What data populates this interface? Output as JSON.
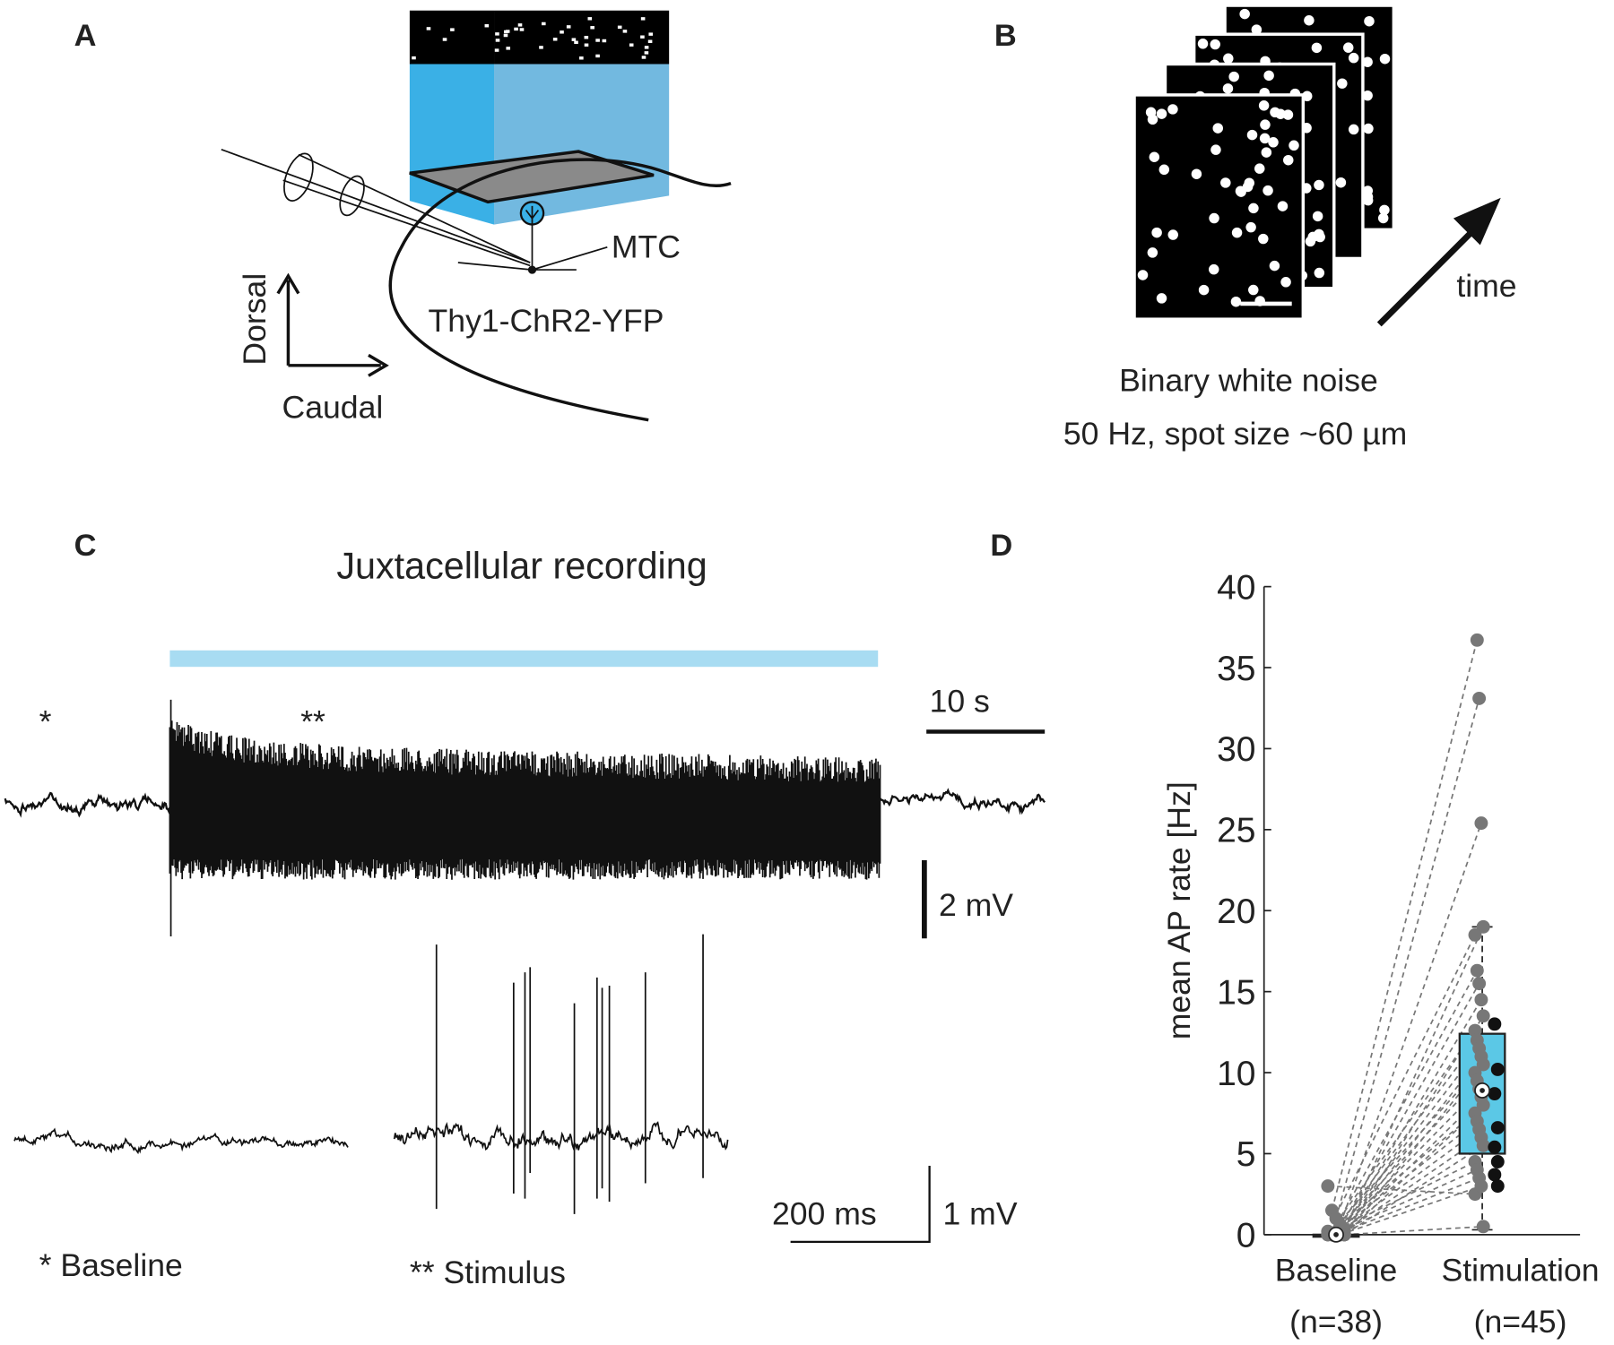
{
  "panel_a": {
    "label": "A",
    "cell": "MTC",
    "line": "Thy1-ChR2-YFP",
    "axis_up": "Dorsal",
    "axis_right": "Caudal"
  },
  "panel_b": {
    "label": "B",
    "arrow": "time",
    "caption": [
      "Binary white noise",
      "50 Hz, spot size  ~60 µm"
    ]
  },
  "panel_c": {
    "label": "C",
    "title": "Juxtacellular recording",
    "mark_baseline": "*",
    "mark_stimulus": "**",
    "scale_time_long": "10 s",
    "scale_volt_long": "2 mV",
    "scale_time_short": "200 ms",
    "scale_volt_short": "1 mV",
    "legend_baseline": "* Baseline",
    "legend_stimulus": "** Stimulus"
  },
  "panel_d": {
    "label": "D"
  },
  "chart_data": {
    "type": "box",
    "ylabel": "mean AP rate [Hz]",
    "categories": [
      "Baseline",
      "Stimulation"
    ],
    "category_counts": [
      "(n=38)",
      "(n=45)"
    ],
    "ylim": [
      0,
      40
    ],
    "yticks": [
      0,
      5,
      10,
      15,
      20,
      25,
      30,
      35,
      40
    ],
    "box_color": "#5bc8e6",
    "point_color": "#777777",
    "boxes": [
      {
        "whisker_low": 0,
        "q1": 0,
        "median": 0,
        "q3": 0,
        "whisker_high": 0
      },
      {
        "whisker_low": 0.3,
        "q1": 5,
        "median": 8.9,
        "q3": 12.4,
        "whisker_high": 19
      }
    ],
    "pairs": {
      "baseline": [
        3.0,
        1.5,
        1.0,
        0.6,
        0.3,
        0.2,
        0.1,
        0,
        0,
        0,
        0,
        0,
        0,
        0,
        0,
        0,
        0,
        0,
        0,
        0,
        0,
        0,
        0,
        0,
        0,
        0,
        0,
        0,
        0,
        0
      ],
      "stimulation": [
        2.5,
        36.7,
        33.1,
        25.4,
        19.0,
        18.5,
        16.3,
        15.5,
        14.5,
        13.5,
        12.6,
        12.0,
        11.5,
        11.0,
        10.5,
        10.0,
        9.5,
        9.0,
        8.5,
        8.0,
        7.5,
        7.0,
        6.5,
        6.0,
        5.5,
        4.5,
        4.0,
        3.5,
        3.0,
        0.5
      ]
    },
    "stimulation_only": [
      13.0,
      10.2,
      8.7,
      6.6,
      5.4,
      4.5,
      3.7,
      3.0
    ]
  }
}
